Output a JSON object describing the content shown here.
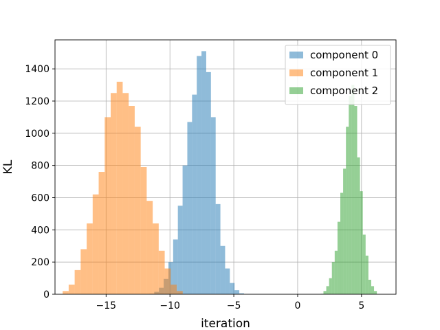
{
  "chart_data": {
    "type": "histogram",
    "xlabel": "iteration",
    "ylabel": "KL",
    "xlim": [
      -19.0,
      7.7
    ],
    "ylim": [
      0,
      1580
    ],
    "xticks": [
      -15,
      -10,
      -5,
      0,
      5
    ],
    "xtick_labels": [
      "−15",
      "−10",
      "−5",
      "0",
      "5"
    ],
    "yticks": [
      0,
      200,
      400,
      600,
      800,
      1000,
      1200,
      1400
    ],
    "ytick_labels": [
      "0",
      "200",
      "400",
      "600",
      "800",
      "1000",
      "1200",
      "1400"
    ],
    "grid": true,
    "legend_position": "top-right",
    "series": [
      {
        "name": "component 0",
        "color": "#1f77b4",
        "opacity": 0.5,
        "bin_start": -11.6,
        "bin_width": 0.37,
        "counts": [
          3,
          15,
          40,
          95,
          200,
          340,
          550,
          800,
          1070,
          1240,
          1480,
          1510,
          1380,
          1100,
          560,
          300,
          160,
          70,
          25,
          6
        ]
      },
      {
        "name": "component 1",
        "color": "#ff7f0e",
        "opacity": 0.5,
        "bin_start": -18.4,
        "bin_width": 0.47,
        "counts": [
          20,
          60,
          150,
          280,
          440,
          620,
          760,
          1100,
          1250,
          1320,
          1250,
          1170,
          1040,
          790,
          580,
          440,
          270,
          160,
          60,
          20
        ]
      },
      {
        "name": "component 2",
        "color": "#2ca02c",
        "opacity": 0.5,
        "bin_start": 1.8,
        "bin_width": 0.22,
        "counts": [
          3,
          20,
          50,
          100,
          200,
          270,
          450,
          630,
          780,
          1040,
          1230,
          1300,
          1170,
          850,
          640,
          370,
          240,
          90,
          50,
          20
        ]
      }
    ]
  }
}
